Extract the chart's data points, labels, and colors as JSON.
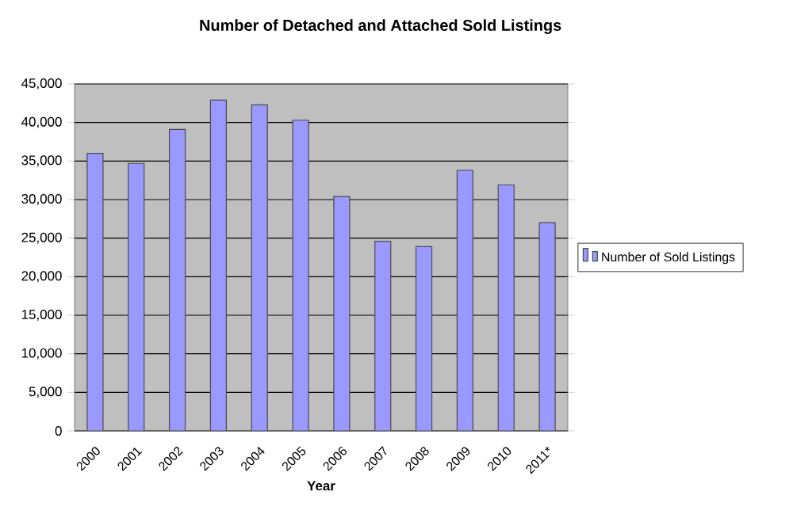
{
  "chart_data": {
    "type": "bar",
    "title": "Number of Detached and Attached Sold Listings",
    "xlabel": "Year",
    "categories": [
      "2000",
      "2001",
      "2002",
      "2003",
      "2004",
      "2005",
      "2006",
      "2007",
      "2008",
      "2009",
      "2010",
      "2011*"
    ],
    "series": [
      {
        "name": "Number of Sold Listings",
        "color": "#9999ff",
        "values": [
          36000,
          34700,
          39100,
          42900,
          42300,
          40300,
          30400,
          24600,
          23900,
          33800,
          31900,
          27000
        ]
      }
    ],
    "ylim": [
      0,
      45000
    ],
    "yticks": [
      {
        "value": 0,
        "label": "0"
      },
      {
        "value": 5000,
        "label": "5,000"
      },
      {
        "value": 10000,
        "label": "10,000"
      },
      {
        "value": 15000,
        "label": "15,000"
      },
      {
        "value": 20000,
        "label": "20,000"
      },
      {
        "value": 25000,
        "label": "25,000"
      },
      {
        "value": 30000,
        "label": "30,000"
      },
      {
        "value": 35000,
        "label": "35,000"
      },
      {
        "value": 40000,
        "label": "40,000"
      },
      {
        "value": 45000,
        "label": "45,000"
      }
    ],
    "grid": "y",
    "legend": "right"
  }
}
